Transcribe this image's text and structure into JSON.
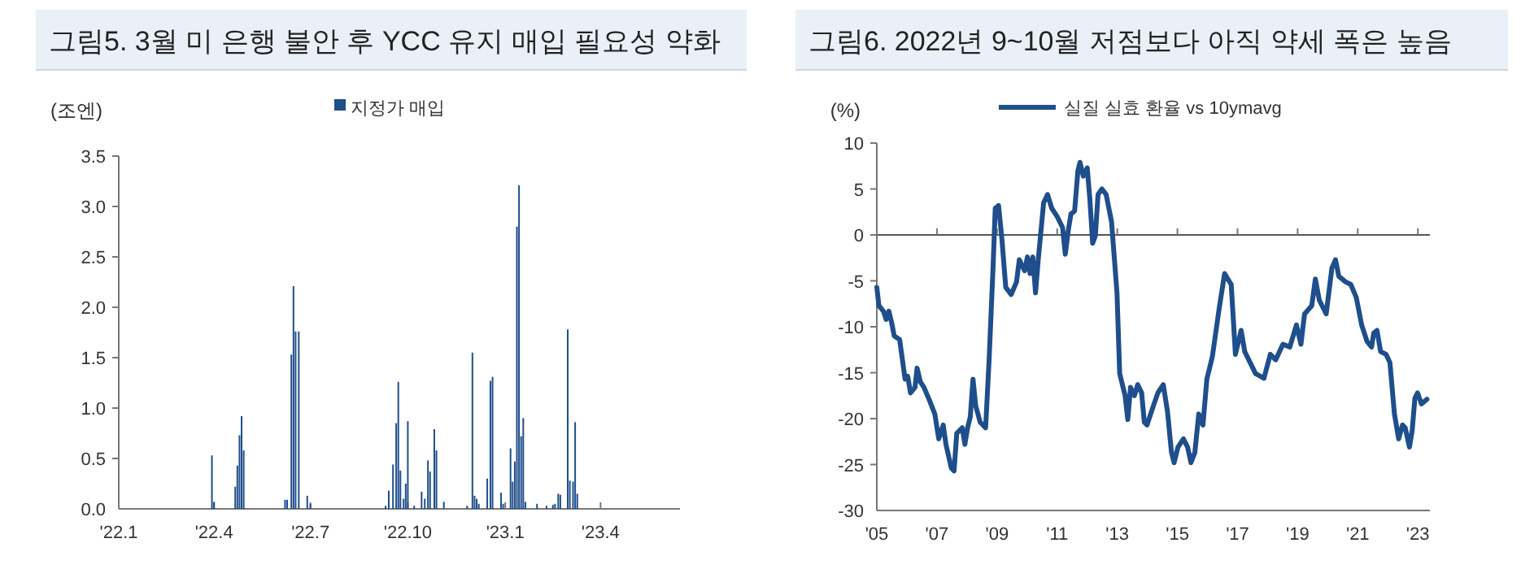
{
  "chart_data": [
    {
      "type": "bar",
      "title": "그림5. 3월 미 은행 불안 후 YCC 유지 매입 필요성 약화",
      "ylabel": "(조엔)",
      "legend": "top",
      "xlim": [
        "2022-01-01",
        "2023-06-15"
      ],
      "xticks": [
        {
          "value": "2022-01-01",
          "label": "'22.1"
        },
        {
          "value": "2022-04-01",
          "label": "'22.4"
        },
        {
          "value": "2022-07-01",
          "label": "'22.7"
        },
        {
          "value": "2022-10-01",
          "label": "'22.10"
        },
        {
          "value": "2023-01-01",
          "label": "'23.1"
        },
        {
          "value": "2023-04-01",
          "label": "'23.4"
        }
      ],
      "ylim": [
        0,
        3.5
      ],
      "yticks": [
        {
          "value": 0,
          "label": "0.0"
        },
        {
          "value": 0.5,
          "label": "0.5"
        },
        {
          "value": 1,
          "label": "1.0"
        },
        {
          "value": 1.5,
          "label": "1.5"
        },
        {
          "value": 2,
          "label": "2.0"
        },
        {
          "value": 2.5,
          "label": "2.5"
        },
        {
          "value": 3,
          "label": "3.0"
        },
        {
          "value": 3.5,
          "label": "3.5"
        }
      ],
      "x": [
        "2022-03-30",
        "2022-04-01",
        "2022-04-21",
        "2022-04-23",
        "2022-04-25",
        "2022-04-27",
        "2022-04-29",
        "2022-06-07",
        "2022-06-09",
        "2022-06-13",
        "2022-06-15",
        "2022-06-17",
        "2022-06-20",
        "2022-06-28",
        "2022-07-01",
        "2022-09-10",
        "2022-09-13",
        "2022-09-17",
        "2022-09-20",
        "2022-09-22",
        "2022-09-24",
        "2022-09-27",
        "2022-09-29",
        "2022-10-01",
        "2022-10-07",
        "2022-10-14",
        "2022-10-17",
        "2022-10-20",
        "2022-10-22",
        "2022-10-26",
        "2022-10-28",
        "2022-11-04",
        "2022-11-26",
        "2022-12-01",
        "2022-12-03",
        "2022-12-05",
        "2022-12-07",
        "2022-12-15",
        "2022-12-18",
        "2022-12-20",
        "2022-12-28",
        "2022-12-30",
        "2023-01-06",
        "2023-01-08",
        "2023-01-10",
        "2023-01-12",
        "2023-01-14",
        "2023-01-16",
        "2023-01-18",
        "2023-01-20",
        "2023-01-31",
        "2023-02-09",
        "2023-02-15",
        "2023-02-17",
        "2023-02-20",
        "2023-02-22",
        "2023-03-01",
        "2023-03-03",
        "2023-03-06",
        "2023-03-08",
        "2023-03-10"
      ],
      "series": [
        {
          "name": "지정가 매입",
          "color": "#1f4e8c",
          "values": [
            0.53,
            0.07,
            0.22,
            0.43,
            0.73,
            0.92,
            0.58,
            0.09,
            0.09,
            1.53,
            2.21,
            1.76,
            1.76,
            0.13,
            0.05,
            0.03,
            0.18,
            0.44,
            0.85,
            1.26,
            0.38,
            0.1,
            0.25,
            0.87,
            0.03,
            0.17,
            0.1,
            0.48,
            0.37,
            0.79,
            0.58,
            0.07,
            0.03,
            1.55,
            0.13,
            0.1,
            0.05,
            0.3,
            1.27,
            1.31,
            0.16,
            0.05,
            0.6,
            0.27,
            0.47,
            2.8,
            3.21,
            0.72,
            0.9,
            0.07,
            0.05,
            0.03,
            0.04,
            0.05,
            0.15,
            0.14,
            1.78,
            0.28,
            0.27,
            0.86,
            0.15
          ]
        }
      ]
    },
    {
      "type": "line",
      "title": "그림6. 2022년 9~10월 저점보다 아직 약세 폭은 높음",
      "ylabel": "(%)",
      "legend": "top",
      "xlim": [
        2005,
        2023.4
      ],
      "xticks": [
        {
          "value": 2005,
          "label": "'05"
        },
        {
          "value": 2007,
          "label": "'07"
        },
        {
          "value": 2009,
          "label": "'09"
        },
        {
          "value": 2011,
          "label": "'11"
        },
        {
          "value": 2013,
          "label": "'13"
        },
        {
          "value": 2015,
          "label": "'15"
        },
        {
          "value": 2017,
          "label": "'17"
        },
        {
          "value": 2019,
          "label": "'19"
        },
        {
          "value": 2021,
          "label": "'21"
        },
        {
          "value": 2023,
          "label": "'23"
        }
      ],
      "ylim": [
        -30,
        10
      ],
      "yticks": [
        -30,
        -25,
        -20,
        -15,
        -10,
        -5,
        0,
        5,
        10
      ],
      "ref_lines": [
        {
          "axis": "y",
          "value": 0,
          "color": "#555555"
        }
      ],
      "x": [
        2005.0,
        2005.07,
        2005.22,
        2005.31,
        2005.4,
        2005.49,
        2005.58,
        2005.76,
        2005.94,
        2006.03,
        2006.12,
        2006.27,
        2006.34,
        2006.45,
        2006.57,
        2006.75,
        2006.93,
        2007.06,
        2007.21,
        2007.3,
        2007.48,
        2007.57,
        2007.66,
        2007.84,
        2007.93,
        2008.02,
        2008.11,
        2008.2,
        2008.29,
        2008.44,
        2008.62,
        2008.74,
        2008.87,
        2008.94,
        2009.05,
        2009.16,
        2009.29,
        2009.47,
        2009.65,
        2009.74,
        2009.92,
        2010.01,
        2010.1,
        2010.19,
        2010.28,
        2010.37,
        2010.55,
        2010.68,
        2010.82,
        2011.0,
        2011.18,
        2011.27,
        2011.37,
        2011.46,
        2011.58,
        2011.69,
        2011.76,
        2011.87,
        2012.0,
        2012.09,
        2012.18,
        2012.27,
        2012.36,
        2012.49,
        2012.63,
        2012.81,
        2012.99,
        2013.08,
        2013.26,
        2013.35,
        2013.44,
        2013.57,
        2013.68,
        2013.81,
        2013.9,
        2013.99,
        2014.17,
        2014.35,
        2014.53,
        2014.67,
        2014.8,
        2014.89,
        2015.02,
        2015.2,
        2015.34,
        2015.45,
        2015.58,
        2015.71,
        2015.85,
        2015.98,
        2016.16,
        2016.39,
        2016.57,
        2016.79,
        2016.93,
        2017.12,
        2017.24,
        2017.42,
        2017.6,
        2017.88,
        2018.09,
        2018.27,
        2018.51,
        2018.74,
        2018.96,
        2019.11,
        2019.23,
        2019.47,
        2019.59,
        2019.72,
        2019.95,
        2020.14,
        2020.26,
        2020.37,
        2020.59,
        2020.77,
        2020.95,
        2021.13,
        2021.31,
        2021.46,
        2021.53,
        2021.64,
        2021.76,
        2021.94,
        2022.07,
        2022.22,
        2022.36,
        2022.49,
        2022.58,
        2022.72,
        2022.81,
        2022.9,
        2022.99,
        2023.12,
        2023.3
      ],
      "series": [
        {
          "name": "실질 실효 환율 vs 10ymavg",
          "color": "#1f4e8c",
          "values": [
            -5.7,
            -7.7,
            -8.3,
            -9.2,
            -8.3,
            -9.5,
            -11,
            -11.4,
            -15.7,
            -15.4,
            -17.2,
            -16.6,
            -14.5,
            -16,
            -16.6,
            -18,
            -19.5,
            -22.2,
            -20.7,
            -22.8,
            -25.4,
            -25.7,
            -21.6,
            -21,
            -22.8,
            -21,
            -19.8,
            -15.7,
            -18.6,
            -20.4,
            -21,
            -13.3,
            -3.3,
            2.9,
            3.2,
            -0.4,
            -5.7,
            -6.5,
            -5.1,
            -2.7,
            -3.9,
            -2.4,
            -4.2,
            -2.4,
            -6.3,
            -2.7,
            3.5,
            4.4,
            2.9,
            2,
            0.8,
            -2.1,
            0.5,
            2.3,
            2.6,
            7,
            7.9,
            6.4,
            7.3,
            3.8,
            -0.9,
            -0.1,
            4.4,
            5,
            4.4,
            1.4,
            -6.3,
            -15.1,
            -17.5,
            -20.1,
            -16.6,
            -17.5,
            -16.3,
            -17.2,
            -20.4,
            -20.7,
            -18.9,
            -17.2,
            -16.3,
            -19.2,
            -23.6,
            -24.8,
            -23.1,
            -22.2,
            -23.1,
            -24.8,
            -23.7,
            -19.5,
            -20.7,
            -15.7,
            -13.3,
            -8,
            -4.2,
            -5.4,
            -13,
            -10.4,
            -12.7,
            -13.9,
            -15.1,
            -15.6,
            -13,
            -13.6,
            -11.9,
            -12.2,
            -9.8,
            -11.9,
            -8.6,
            -7.7,
            -4.8,
            -7.1,
            -8.6,
            -3.6,
            -2.7,
            -4.5,
            -5.1,
            -5.4,
            -6.8,
            -9.8,
            -11.6,
            -12.2,
            -10.7,
            -10.4,
            -12.7,
            -13,
            -13.9,
            -19.5,
            -22.2,
            -20.7,
            -21,
            -23.1,
            -21.3,
            -17.8,
            -17.2,
            -18.4,
            -17.9
          ]
        }
      ]
    }
  ]
}
